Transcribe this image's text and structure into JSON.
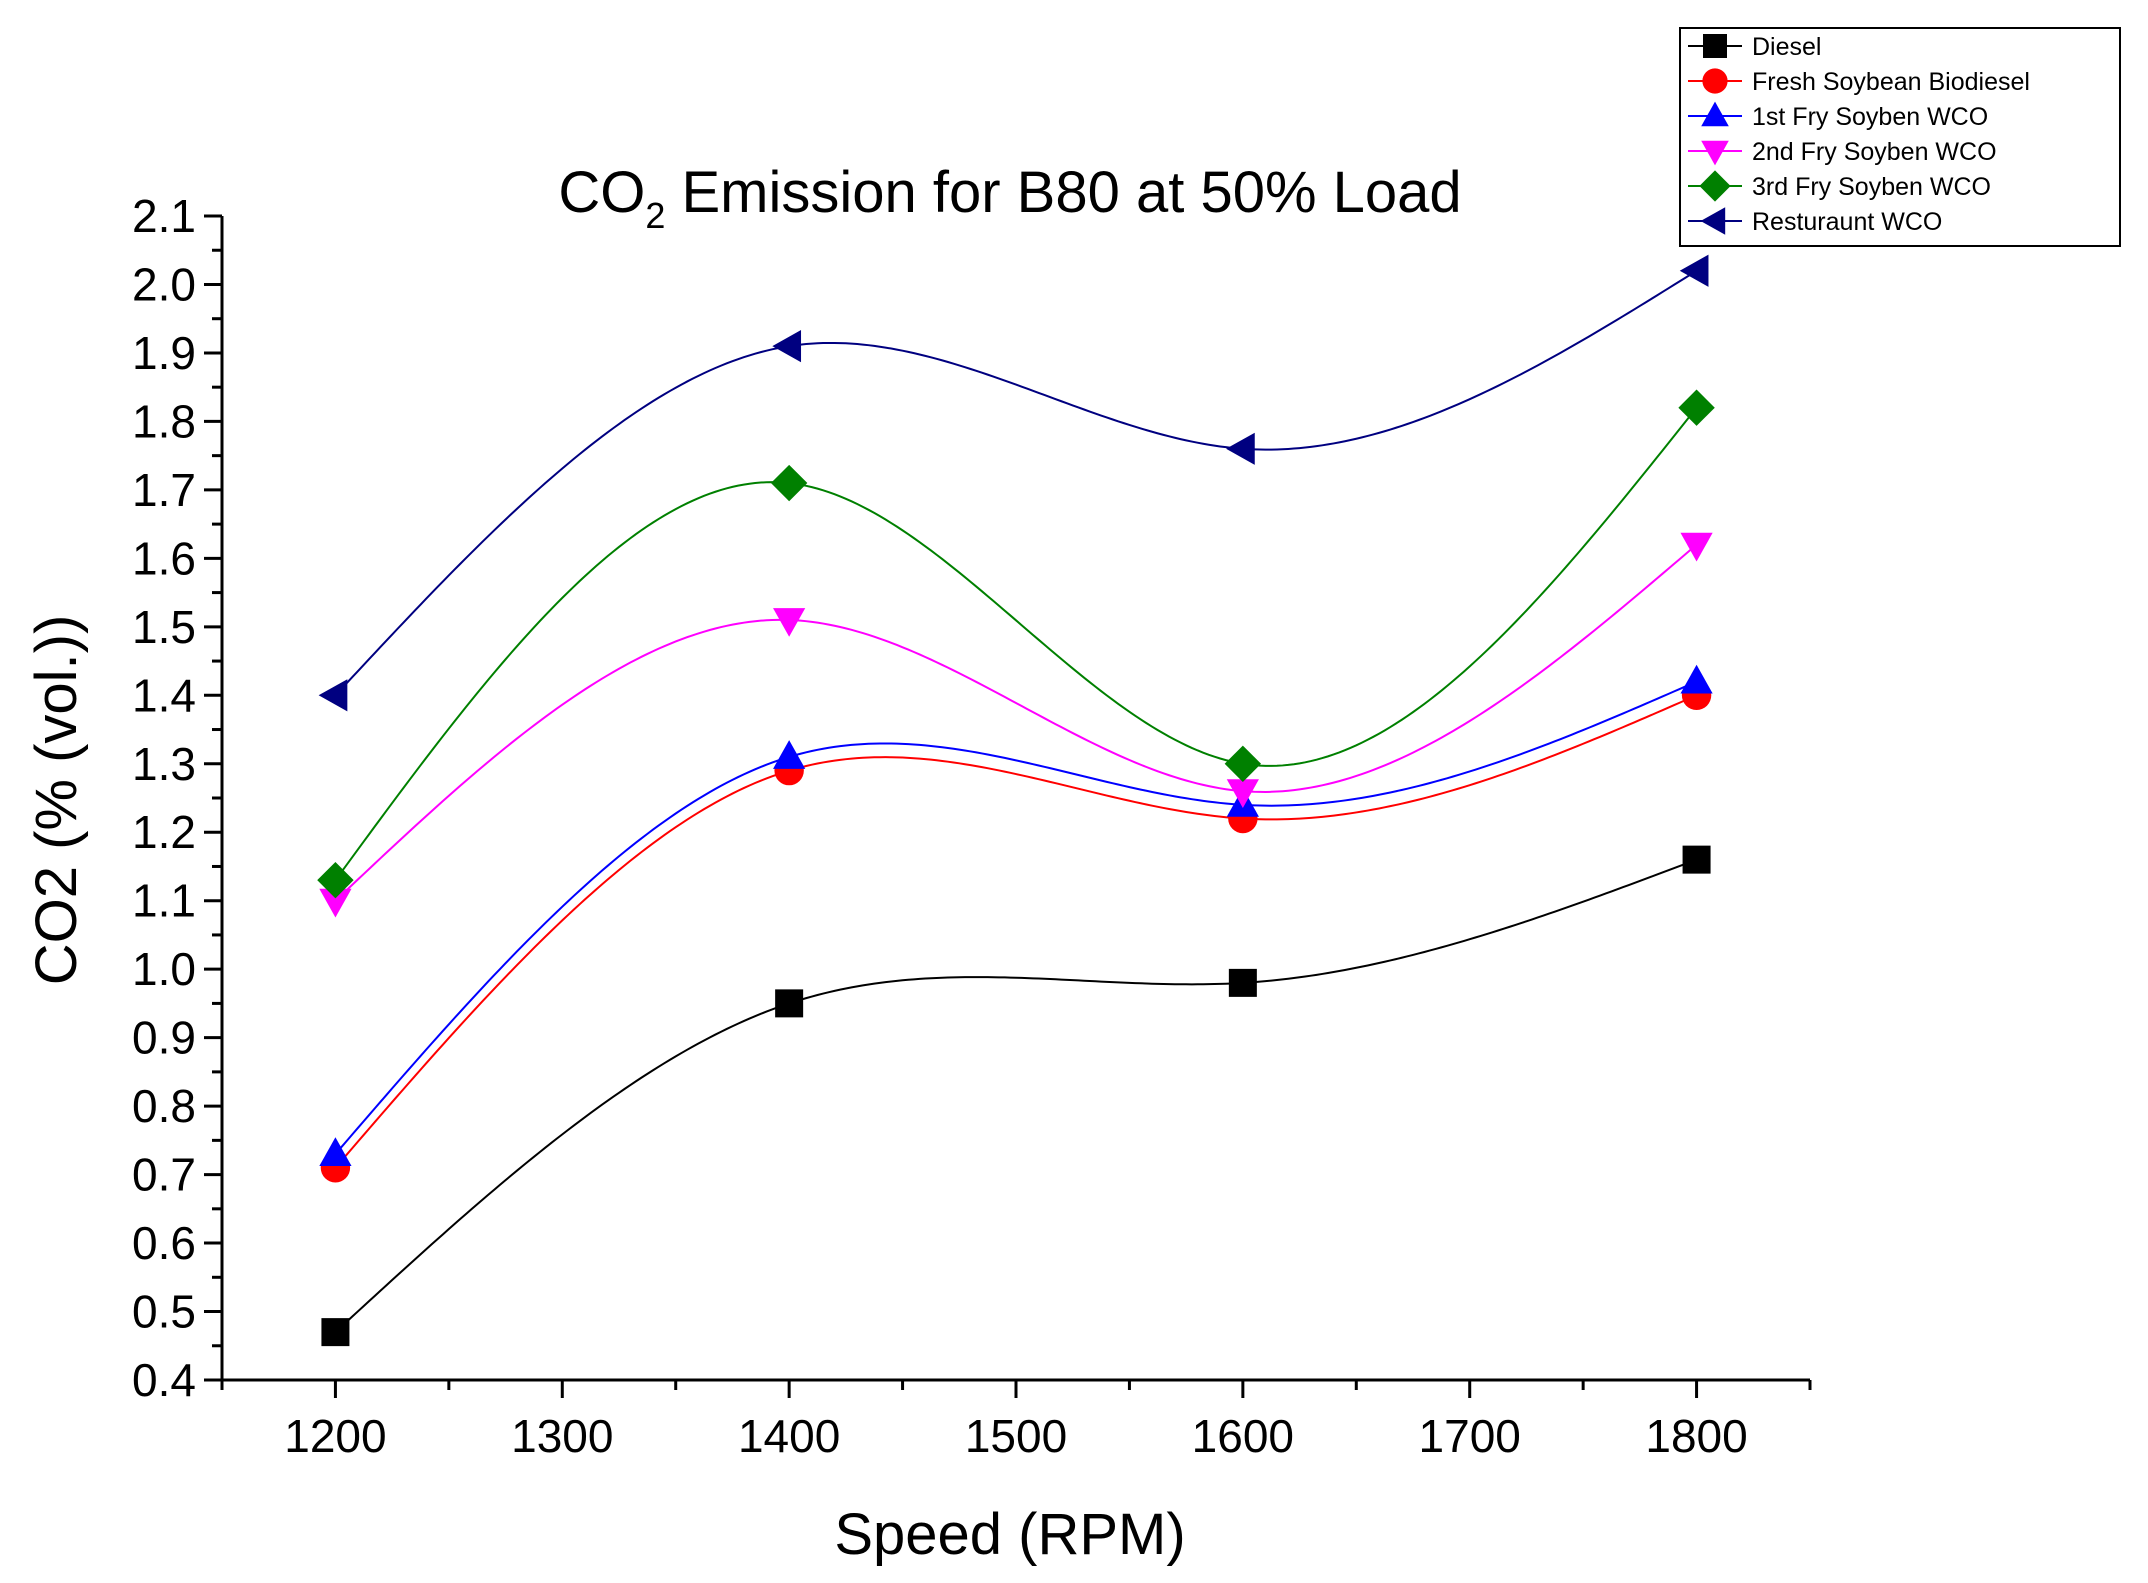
{
  "chart_data": {
    "type": "line",
    "title": "CO",
    "title_subscript": "2",
    "title_suffix": " Emission for B80 at 50% Load",
    "xlabel": "Speed (RPM)",
    "ylabel": "CO2 (% (vol.))",
    "x": [
      1200,
      1400,
      1600,
      1800
    ],
    "xlim": [
      1150,
      1850
    ],
    "ylim": [
      0.4,
      2.1
    ],
    "x_ticks": [
      "1200",
      "1300",
      "1400",
      "1500",
      "1600",
      "1700",
      "1800"
    ],
    "y_ticks": [
      "0.4",
      "0.5",
      "0.6",
      "0.7",
      "0.8",
      "0.9",
      "1.0",
      "1.1",
      "1.2",
      "1.3",
      "1.4",
      "1.5",
      "1.6",
      "1.7",
      "1.8",
      "1.9",
      "2.0",
      "2.1"
    ],
    "grid": false,
    "legend_position": "top-right, outside plot",
    "series": [
      {
        "name": "Diesel",
        "color": "#000000",
        "marker": "square",
        "values": [
          0.47,
          0.95,
          0.98,
          1.16
        ]
      },
      {
        "name": "Fresh Soybean Biodiesel",
        "color": "#ff0000",
        "marker": "circle",
        "values": [
          0.71,
          1.29,
          1.22,
          1.4
        ]
      },
      {
        "name": "1st Fry Soyben WCO",
        "color": "#0000ff",
        "marker": "triangle-up",
        "values": [
          0.73,
          1.31,
          1.24,
          1.42
        ]
      },
      {
        "name": "2nd Fry Soyben WCO",
        "color": "#ff00ff",
        "marker": "triangle-down",
        "values": [
          1.1,
          1.51,
          1.26,
          1.62
        ]
      },
      {
        "name": "3rd Fry Soyben WCO",
        "color": "#008000",
        "marker": "diamond",
        "values": [
          1.13,
          1.71,
          1.3,
          1.82
        ]
      },
      {
        "name": "Resturaunt WCO",
        "color": "#000080",
        "marker": "triangle-left",
        "values": [
          1.4,
          1.91,
          1.76,
          2.02
        ]
      }
    ]
  }
}
